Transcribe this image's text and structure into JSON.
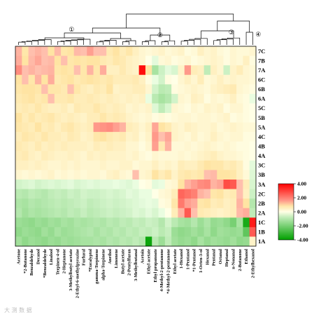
{
  "chart_data": {
    "type": "heatmap",
    "title": "",
    "rows": [
      "7C",
      "7B",
      "7A",
      "6C",
      "6B",
      "6A",
      "5C",
      "5B",
      "5A",
      "4C",
      "4B",
      "4A",
      "3C",
      "3B",
      "3A",
      "2C",
      "2B",
      "2A",
      "1C",
      "1B",
      "1A"
    ],
    "columns": [
      "Acetone",
      "*2-Butanone",
      "Benzaldehyde",
      "Decanol",
      "*Benzaldehyde",
      "Linalool",
      "Terpinen-4-ol",
      "2-Heptanone",
      "3-Methylbutyl acetate",
      "2-Ethyl-6-methylpyrazine",
      "Furfural",
      "*Eucalyptol",
      "gamma-Terpinene",
      "alpha-Terpinene",
      "Anethol",
      "Limonene",
      "Butyl acetate",
      "2-Pentylfuran",
      "3-Methylbutanal",
      "Acetoin",
      "Ethyl acetate",
      "Ethyl propanoate",
      "4-Methyl-2-pentanone",
      "*4-Methyl-2-pentanone",
      "Ethyl acetate",
      "1-Hexanol",
      "1-Pentanol",
      "*1-Pentanol",
      "1-Octen-3-ol",
      "Hexanal",
      "Pentanal",
      "Octanal",
      "Heptanal",
      "n-Nonanal",
      "2-Butanone",
      "Ethanol",
      "2-Ethylhexanol"
    ],
    "values": [
      [
        1.2,
        0.8,
        1.0,
        1.2,
        1.0,
        0.9,
        1.1,
        0.8,
        0.9,
        1.1,
        1.0,
        1.5,
        1.0,
        1.0,
        0.7,
        0.9,
        0.6,
        0.8,
        0.5,
        0.3,
        0.2,
        0.3,
        0.4,
        0.2,
        0.3,
        0.4,
        0.1,
        0.2,
        0.5,
        0.3,
        0.4,
        0.2,
        0.1,
        0.3,
        0.2,
        0.2,
        0.3
      ],
      [
        1.3,
        0.9,
        1.1,
        1.4,
        1.0,
        1.1,
        0.9,
        1.0,
        0.8,
        0.9,
        0.8,
        0.9,
        0.9,
        0.7,
        0.6,
        0.8,
        0.7,
        0.5,
        0.4,
        0.3,
        0.0,
        -0.2,
        0.2,
        0.3,
        0.1,
        0.2,
        0.3,
        0.1,
        0.2,
        0.3,
        0.4,
        0.3,
        0.1,
        0.3,
        0.2,
        0.5,
        0.1
      ],
      [
        1.8,
        1.0,
        1.2,
        1.0,
        1.1,
        1.2,
        0.8,
        0.9,
        0.8,
        1.0,
        0.8,
        1.2,
        0.8,
        1.3,
        0.5,
        0.5,
        0.7,
        0.5,
        0.4,
        3.8,
        0.9,
        -1.2,
        -0.6,
        -0.2,
        -0.4,
        0.4,
        1.6,
        0.6,
        0.5,
        -0.8,
        0.5,
        0.3,
        -0.6,
        0.4,
        0.6,
        0.3,
        0.2
      ],
      [
        0.9,
        1.0,
        0.8,
        1.2,
        0.9,
        1.3,
        0.7,
        0.8,
        0.9,
        0.7,
        0.8,
        0.9,
        0.8,
        0.7,
        0.8,
        0.6,
        0.6,
        0.6,
        0.7,
        0.5,
        0.1,
        -0.1,
        -0.5,
        0.1,
        0.0,
        0.3,
        0.5,
        0.3,
        0.6,
        0.2,
        0.3,
        0.5,
        0.3,
        0.4,
        0.3,
        0.3,
        0.2
      ],
      [
        0.8,
        0.9,
        0.9,
        0.8,
        1.0,
        0.8,
        0.8,
        0.7,
        1.0,
        0.8,
        0.6,
        0.5,
        0.7,
        0.6,
        0.9,
        0.4,
        0.5,
        0.5,
        0.6,
        0.6,
        0.3,
        -0.5,
        -0.9,
        -0.8,
        0.1,
        0.2,
        0.3,
        0.4,
        0.3,
        0.2,
        0.4,
        0.5,
        0.6,
        0.7,
        0.3,
        0.2,
        0.1
      ],
      [
        0.7,
        0.8,
        0.9,
        0.7,
        0.8,
        1.0,
        0.7,
        0.7,
        0.8,
        0.6,
        0.6,
        0.7,
        0.6,
        0.5,
        0.6,
        0.5,
        0.4,
        0.5,
        0.4,
        0.5,
        -0.1,
        -0.9,
        -1.2,
        -1.0,
        -0.5,
        0.3,
        0.2,
        0.5,
        0.4,
        0.1,
        0.3,
        0.2,
        0.3,
        0.5,
        0.2,
        0.1,
        -0.1
      ],
      [
        0.6,
        0.7,
        0.6,
        0.8,
        0.6,
        0.5,
        0.5,
        0.6,
        0.4,
        0.7,
        0.6,
        0.6,
        0.8,
        0.6,
        0.5,
        0.6,
        0.5,
        0.3,
        0.4,
        0.3,
        0.4,
        -0.3,
        -0.8,
        -0.4,
        0.3,
        0.2,
        0.1,
        0.3,
        0.2,
        0.4,
        0.3,
        0.4,
        0.1,
        0.3,
        0.3,
        0.1,
        0.0
      ],
      [
        0.9,
        0.6,
        0.8,
        0.6,
        0.7,
        0.8,
        0.6,
        0.5,
        0.6,
        0.5,
        0.4,
        0.6,
        0.6,
        0.8,
        0.6,
        0.7,
        0.6,
        0.4,
        0.3,
        0.2,
        0.3,
        0.1,
        0.2,
        0.1,
        0.2,
        0.3,
        0.3,
        0.2,
        0.3,
        0.3,
        0.2,
        0.3,
        0.4,
        0.1,
        0.2,
        0.1,
        0.0
      ],
      [
        0.8,
        0.7,
        0.6,
        0.9,
        0.6,
        0.7,
        0.5,
        0.7,
        0.8,
        0.6,
        0.5,
        0.6,
        1.6,
        1.7,
        1.8,
        1.5,
        1.2,
        0.6,
        0.5,
        0.3,
        0.5,
        1.4,
        0.9,
        0.7,
        0.4,
        0.3,
        0.5,
        0.4,
        0.3,
        0.3,
        0.4,
        0.2,
        0.3,
        0.4,
        0.3,
        0.2,
        0.2
      ],
      [
        0.6,
        0.8,
        0.7,
        0.6,
        0.8,
        0.6,
        0.6,
        0.5,
        0.7,
        0.6,
        0.4,
        0.5,
        0.8,
        0.9,
        0.7,
        0.6,
        0.7,
        0.4,
        0.5,
        0.2,
        0.4,
        1.6,
        1.0,
        1.4,
        0.4,
        0.3,
        0.2,
        0.4,
        0.2,
        0.3,
        0.5,
        0.3,
        0.2,
        0.3,
        0.3,
        0.1,
        0.1
      ],
      [
        0.7,
        0.6,
        0.5,
        0.7,
        0.5,
        0.6,
        0.5,
        0.6,
        0.5,
        0.5,
        0.5,
        0.4,
        0.6,
        0.5,
        0.6,
        0.5,
        0.5,
        0.3,
        0.3,
        0.1,
        0.3,
        1.5,
        0.7,
        1.2,
        0.2,
        0.2,
        0.3,
        0.2,
        0.3,
        0.4,
        0.3,
        0.2,
        0.3,
        0.2,
        0.1,
        0.1,
        0.0
      ],
      [
        0.6,
        0.7,
        0.5,
        0.4,
        0.6,
        0.5,
        0.4,
        0.4,
        0.5,
        0.4,
        0.3,
        0.5,
        0.4,
        0.5,
        0.4,
        0.4,
        0.4,
        0.3,
        0.4,
        0.2,
        0.1,
        0.3,
        0.2,
        0.2,
        0.2,
        0.3,
        0.2,
        0.3,
        0.4,
        0.5,
        0.6,
        0.4,
        0.3,
        0.3,
        0.2,
        0.1,
        0.0
      ],
      [
        0.5,
        0.5,
        0.4,
        0.5,
        0.4,
        0.3,
        0.3,
        0.4,
        0.3,
        0.4,
        0.3,
        0.3,
        0.3,
        0.4,
        0.3,
        0.3,
        0.4,
        0.4,
        0.2,
        0.3,
        0.3,
        0.5,
        0.3,
        0.4,
        0.3,
        0.6,
        0.5,
        0.5,
        0.7,
        0.9,
        0.8,
        0.8,
        0.6,
        0.7,
        0.5,
        0.1,
        -0.2
      ],
      [
        0.3,
        0.2,
        0.3,
        0.2,
        0.3,
        0.4,
        0.2,
        0.3,
        0.2,
        0.3,
        0.2,
        0.3,
        0.3,
        0.2,
        0.4,
        0.5,
        0.3,
        0.2,
        1.0,
        0.3,
        0.4,
        0.9,
        0.6,
        0.8,
        0.4,
        0.7,
        0.8,
        0.7,
        0.8,
        1.0,
        1.1,
        0.9,
        0.9,
        0.8,
        0.5,
        0.2,
        -0.3
      ],
      [
        -0.5,
        -0.4,
        -0.3,
        -0.5,
        -0.4,
        -0.3,
        -0.4,
        -0.3,
        -0.2,
        -0.4,
        -0.3,
        -0.2,
        -0.3,
        -0.2,
        -0.2,
        -0.1,
        -0.2,
        -0.3,
        -0.1,
        0.0,
        0.1,
        -0.2,
        -0.1,
        0.2,
        0.3,
        0.9,
        1.2,
        1.5,
        1.8,
        1.9,
        1.2,
        1.4,
        2.8,
        2.6,
        1.0,
        0.6,
        -0.4
      ],
      [
        -0.9,
        -1.0,
        -0.8,
        -0.9,
        -1.0,
        -0.8,
        -0.7,
        -0.8,
        -0.6,
        -0.7,
        -0.5,
        -0.6,
        -0.6,
        -0.5,
        -0.4,
        -0.5,
        -0.4,
        -0.2,
        -0.3,
        -0.1,
        -0.1,
        0.0,
        0.2,
        0.3,
        0.6,
        2.4,
        2.2,
        2.0,
        1.2,
        1.0,
        0.8,
        0.9,
        0.6,
        0.7,
        1.0,
        0.5,
        -0.6
      ],
      [
        -1.1,
        -1.2,
        -1.0,
        -1.1,
        -1.0,
        -0.9,
        -0.8,
        -0.9,
        -0.8,
        -0.7,
        -0.6,
        -0.8,
        -0.7,
        -0.6,
        -0.5,
        -0.6,
        -0.5,
        -0.4,
        -0.3,
        -0.2,
        -0.1,
        -0.2,
        0.1,
        0.2,
        0.8,
        2.1,
        1.5,
        1.3,
        0.8,
        0.9,
        0.6,
        0.7,
        0.5,
        0.6,
        1.2,
        0.9,
        -1.0
      ],
      [
        -1.0,
        -1.3,
        -1.1,
        -1.2,
        -1.1,
        -1.0,
        -0.9,
        -1.0,
        -0.8,
        -0.9,
        -0.7,
        -0.9,
        -0.8,
        -0.7,
        -0.6,
        -0.7,
        -0.6,
        -0.5,
        -0.3,
        -0.4,
        -0.2,
        -0.4,
        -0.1,
        0.0,
        0.6,
        1.2,
        2.6,
        1.0,
        0.7,
        0.6,
        0.5,
        0.4,
        0.5,
        0.6,
        1.1,
        1.3,
        -0.8
      ],
      [
        -1.4,
        -1.5,
        -1.6,
        -1.4,
        -1.5,
        -1.3,
        -1.4,
        -1.2,
        -1.3,
        -1.1,
        -1.2,
        -1.1,
        -1.0,
        -1.1,
        -0.9,
        -1.0,
        -0.8,
        -0.9,
        -0.7,
        -0.8,
        -0.6,
        -0.7,
        -1.0,
        -0.5,
        -0.9,
        -1.2,
        -1.3,
        -1.0,
        -1.4,
        -1.1,
        -1.5,
        -1.4,
        -1.6,
        -2.0,
        -1.2,
        -3.6,
        3.6
      ],
      [
        -1.6,
        -1.4,
        -1.5,
        -1.6,
        -1.3,
        -1.5,
        -1.2,
        -1.4,
        -1.3,
        -1.2,
        -1.1,
        -1.0,
        -1.2,
        -1.0,
        -1.1,
        -0.9,
        -1.0,
        -0.8,
        -0.9,
        -0.7,
        -0.8,
        -0.6,
        -0.9,
        -0.7,
        -1.4,
        -1.6,
        -1.5,
        -1.3,
        -1.5,
        -1.2,
        -1.6,
        -1.3,
        -1.4,
        -1.5,
        -1.4,
        -2.4,
        2.6
      ],
      [
        -1.3,
        -1.6,
        -1.4,
        -1.5,
        -1.6,
        -1.4,
        -1.5,
        -1.3,
        -1.4,
        -1.3,
        -1.2,
        -1.2,
        -1.1,
        -1.2,
        -1.0,
        -1.1,
        -0.9,
        -1.0,
        -0.8,
        -1.0,
        -3.8,
        -0.9,
        -1.4,
        -0.8,
        -1.3,
        -1.5,
        -1.4,
        -1.6,
        -1.2,
        -1.5,
        -1.3,
        -1.4,
        -1.5,
        -1.3,
        -1.6,
        -1.5,
        0.4
      ]
    ],
    "color_scale": {
      "min": -4,
      "max": 4,
      "low": "#00a000",
      "mid": "#ffffff",
      "high": "#ff0000"
    },
    "colorbar_ticks": [
      "4.00",
      "2.00",
      "0.00",
      "-2.00",
      "-4.00"
    ],
    "cluster_labels": [
      "①",
      "②",
      "③",
      "④"
    ],
    "grid": false,
    "legend_position": "right"
  },
  "watermark": "大 测 数 据"
}
